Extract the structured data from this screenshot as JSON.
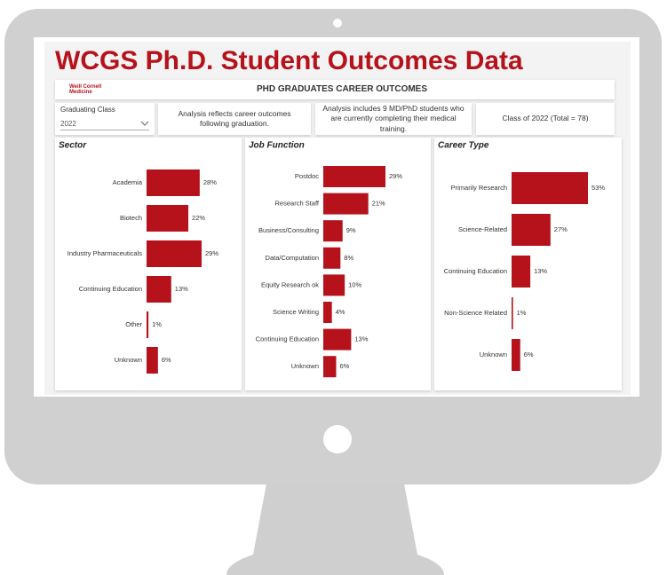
{
  "header": {
    "title": "WCGS Ph.D. Student Outcomes Data",
    "logo": "Weill Cornell Medicine",
    "banner": "PHD GRADUATES CAREER OUTCOMES"
  },
  "filter": {
    "label": "Graduating Class",
    "value": "2022"
  },
  "notes": [
    "Analysis reflects career outcomes following graduation.",
    "Analysis includes 9 MD/PhD students who are currently completing their medical training.",
    "Class of 2022 (Total = 78)"
  ],
  "chart_data": [
    {
      "type": "bar",
      "orientation": "horizontal",
      "title": "Sector",
      "color": "#b5121b",
      "categories": [
        "Academia",
        "Biotech",
        "Industry Pharmaceuticals",
        "Continuing Education",
        "Other",
        "Unknown"
      ],
      "values": [
        28,
        22,
        29,
        13,
        1,
        6
      ],
      "value_labels": [
        "28%",
        "22%",
        "29%",
        "13%",
        "1%",
        "6%"
      ]
    },
    {
      "type": "bar",
      "orientation": "horizontal",
      "title": "Job Function",
      "color": "#b5121b",
      "categories": [
        "Postdoc",
        "Research Staff",
        "Business/Consulting",
        "Data/Computation",
        "Equity Research ok",
        "Science Writing",
        "Continuing Education",
        "Unknown"
      ],
      "values": [
        29,
        21,
        9,
        8,
        10,
        4,
        13,
        6
      ],
      "value_labels": [
        "29%",
        "21%",
        "9%",
        "8%",
        "10%",
        "4%",
        "13%",
        "6%"
      ]
    },
    {
      "type": "bar",
      "orientation": "horizontal",
      "title": "Career Type",
      "color": "#b5121b",
      "categories": [
        "Primarily Research",
        "Science-Related",
        "Continuing Education",
        "Non-Science Related",
        "Unknown"
      ],
      "values": [
        53,
        27,
        13,
        1,
        6
      ],
      "value_labels": [
        "53%",
        "27%",
        "13%",
        "1%",
        "6%"
      ]
    }
  ]
}
